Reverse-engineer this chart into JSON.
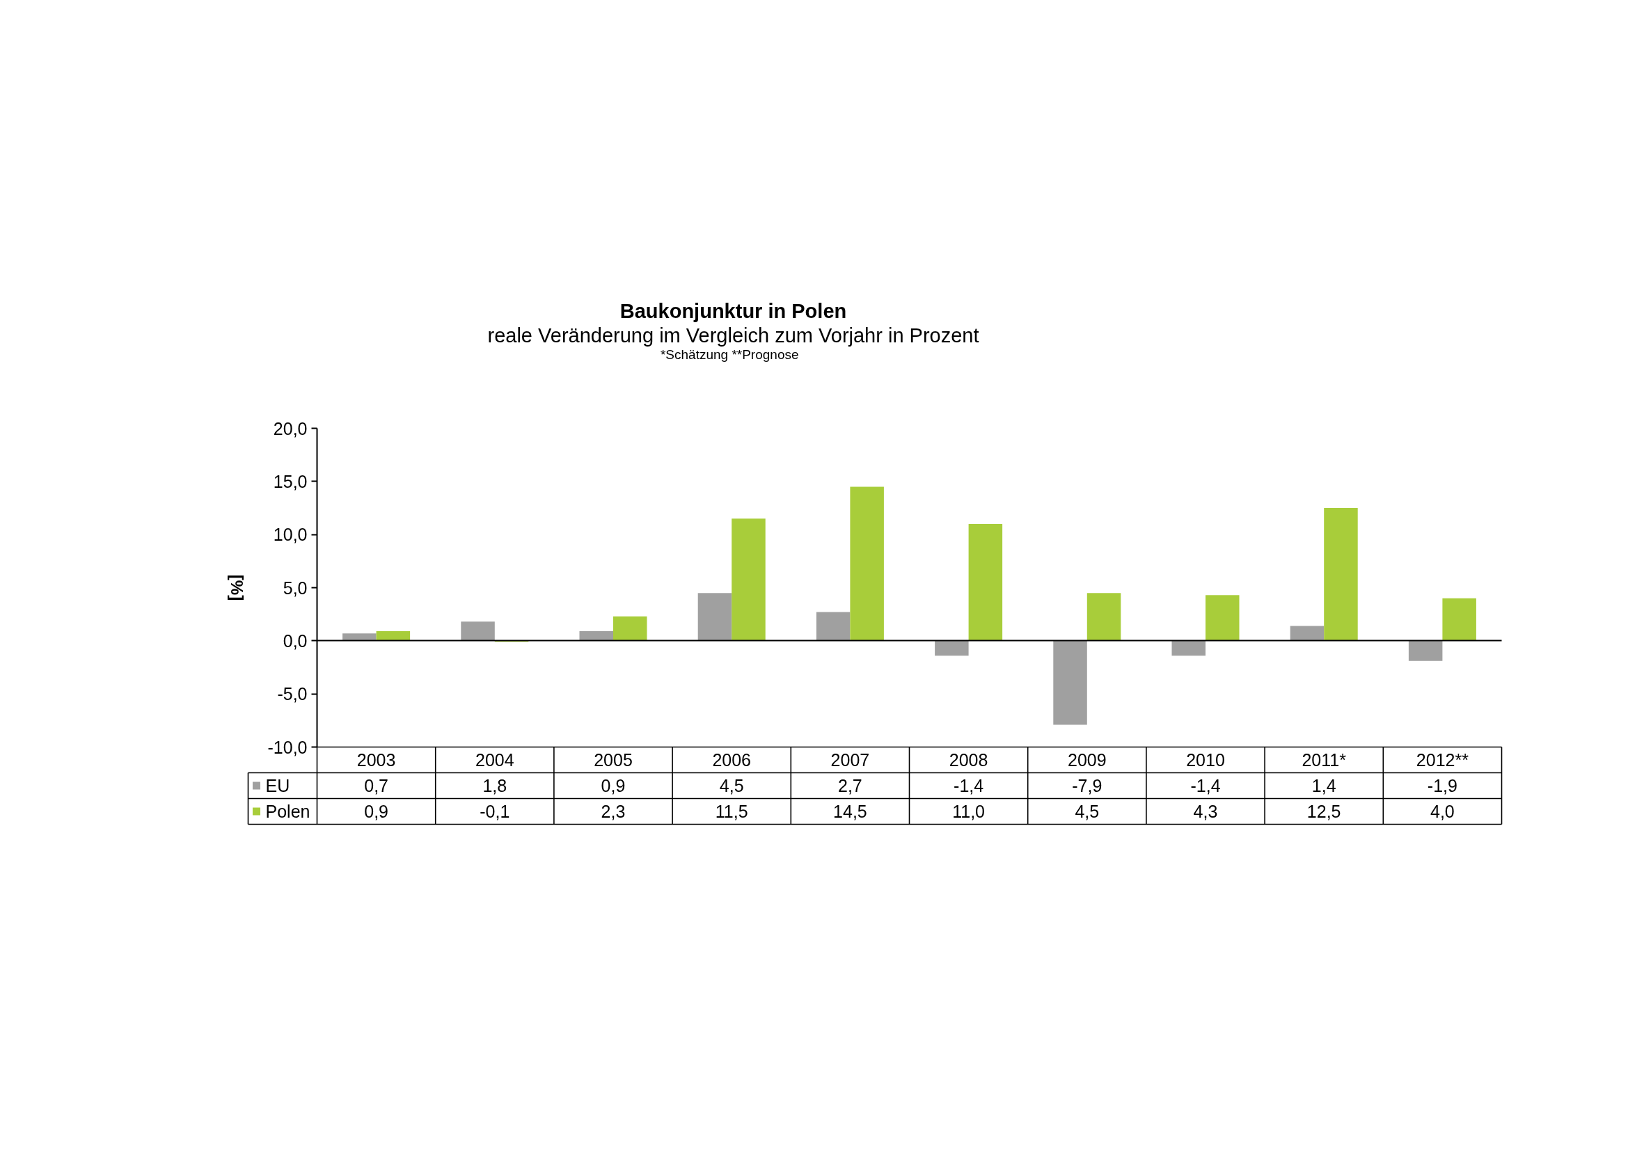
{
  "chart_data": {
    "type": "bar",
    "title": "Baukonjunktur in Polen",
    "subtitle": "reale Veränderung im Vergleich zum Vorjahr in Prozent",
    "annotations": [
      "*Schätzung   **Prognose"
    ],
    "ylabel": "[%]",
    "categories": [
      "2003",
      "2004",
      "2005",
      "2006",
      "2007",
      "2008",
      "2009",
      "2010",
      "2011*",
      "2012**"
    ],
    "series": [
      {
        "name": "EU",
        "color": "#a0a0a0",
        "values": [
          0.7,
          1.8,
          0.9,
          4.5,
          2.7,
          -1.4,
          -7.9,
          -1.4,
          1.4,
          -1.9
        ],
        "value_labels": [
          "0,7",
          "1,8",
          "0,9",
          "4,5",
          "2,7",
          "-1,4",
          "-7,9",
          "-1,4",
          "1,4",
          "-1,9"
        ]
      },
      {
        "name": "Polen",
        "color": "#a8cd3a",
        "values": [
          0.9,
          -0.1,
          2.3,
          11.5,
          14.5,
          11.0,
          4.5,
          4.3,
          12.5,
          4.0
        ],
        "value_labels": [
          "0,9",
          "-0,1",
          "2,3",
          "11,5",
          "14,5",
          "11,0",
          "4,5",
          "4,3",
          "12,5",
          "4,0"
        ]
      }
    ],
    "ylim": [
      -10,
      20
    ],
    "yticks": [
      {
        "value": -10,
        "label": "-10,0"
      },
      {
        "value": -5,
        "label": "-5,0"
      },
      {
        "value": 0,
        "label": "0,0"
      },
      {
        "value": 5,
        "label": "5,0"
      },
      {
        "value": 10,
        "label": "10,0"
      },
      {
        "value": 15,
        "label": "15,0"
      },
      {
        "value": 20,
        "label": "20,0"
      }
    ],
    "legend": "bottom left"
  }
}
